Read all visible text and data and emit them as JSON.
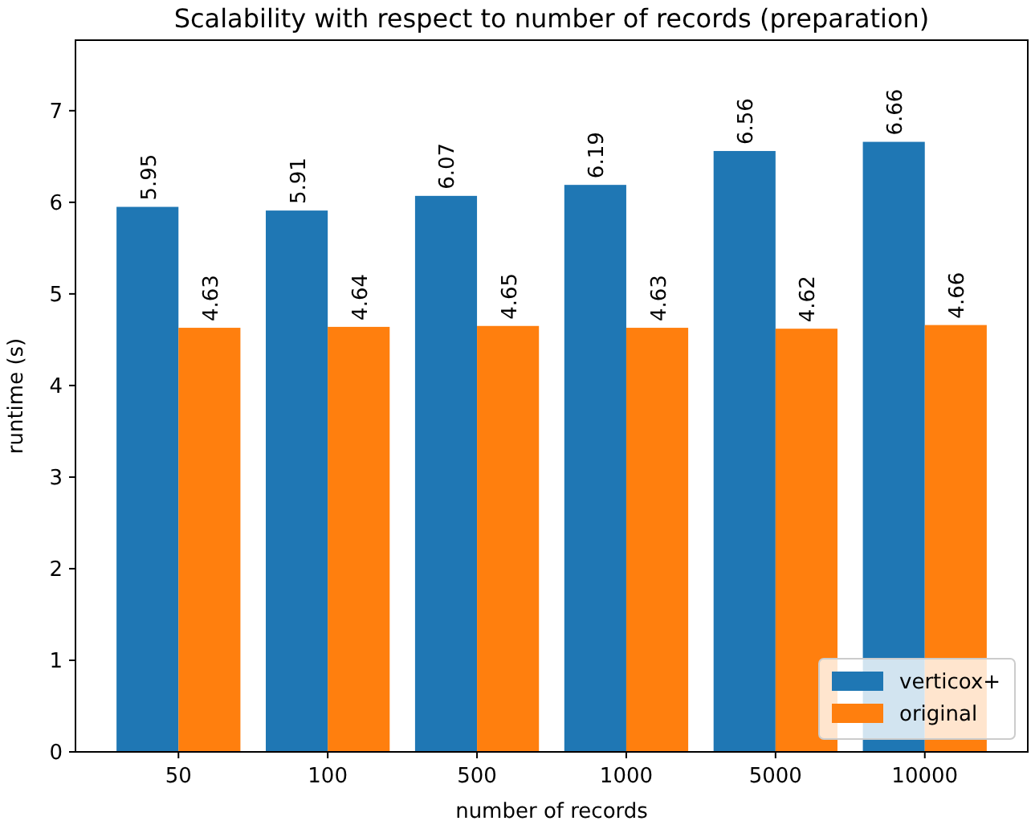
{
  "chart_data": {
    "type": "bar",
    "title": "Scalability with respect to number of records (preparation)",
    "xlabel": "number of records",
    "ylabel": "runtime (s)",
    "categories": [
      "50",
      "100",
      "500",
      "1000",
      "5000",
      "10000"
    ],
    "series": [
      {
        "name": "verticox+",
        "color": "#1f77b4",
        "values": [
          5.95,
          5.91,
          6.07,
          6.19,
          6.56,
          6.66
        ]
      },
      {
        "name": "original",
        "color": "#ff7f0e",
        "values": [
          4.63,
          4.64,
          4.65,
          4.63,
          4.62,
          4.66
        ]
      }
    ],
    "ylim": [
      0,
      7.77
    ],
    "yticks": [
      0,
      1,
      2,
      3,
      4,
      5,
      6,
      7
    ],
    "data_labels": true,
    "grid": false,
    "legend": "lower right"
  }
}
